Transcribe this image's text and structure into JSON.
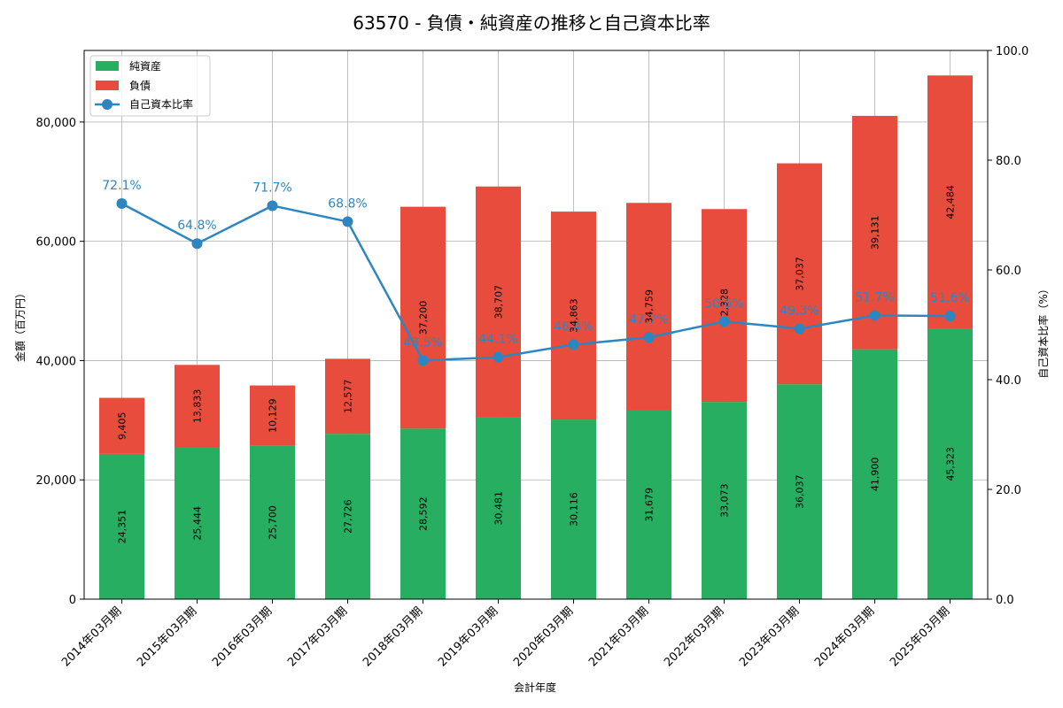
{
  "chart_data": {
    "type": "bar",
    "title": "63570 - 負債・純資産の推移と自己資本比率",
    "xlabel": "会計年度",
    "ylabel": "金額（百万円）",
    "y2label": "自己資本比率（%）",
    "ylim": [
      0,
      92000
    ],
    "y2lim": [
      0,
      100
    ],
    "yticks": [
      0,
      20000,
      40000,
      60000,
      80000
    ],
    "yticklabels": [
      "0",
      "20,000",
      "40,000",
      "60,000",
      "80,000"
    ],
    "y2ticks": [
      0,
      20,
      40,
      60,
      80,
      100
    ],
    "y2ticklabels": [
      "0.0",
      "20.0",
      "40.0",
      "60.0",
      "80.0",
      "100.0"
    ],
    "grid": true,
    "legend_position": "top-left",
    "categories": [
      "2014年03月期",
      "2015年03月期",
      "2016年03月期",
      "2017年03月期",
      "2018年03月期",
      "2019年03月期",
      "2020年03月期",
      "2021年03月期",
      "2022年03月期",
      "2023年03月期",
      "2024年03月期",
      "2025年03月期"
    ],
    "series": [
      {
        "name": "純資産",
        "type": "bar",
        "color": "#27ae60",
        "values": [
          24351,
          25444,
          25700,
          27726,
          28592,
          30481,
          30116,
          31679,
          33073,
          36037,
          41900,
          45323
        ],
        "labels": [
          "24,351",
          "25,444",
          "25,700",
          "27,726",
          "28,592",
          "30,481",
          "30,116",
          "31,679",
          "33,073",
          "36,037",
          "41,900",
          "45,323"
        ]
      },
      {
        "name": "負債",
        "type": "bar",
        "color": "#e74c3c",
        "values": [
          9405,
          13833,
          10129,
          12577,
          37200,
          38707,
          34863,
          34759,
          32328,
          37037,
          39131,
          42484
        ],
        "labels": [
          "9,405",
          "13,833",
          "10,129",
          "12,577",
          "37,200",
          "38,707",
          "34,863",
          "34,759",
          "32,328",
          "37,037",
          "39,131",
          "42,484"
        ]
      },
      {
        "name": "自己資本比率",
        "type": "line",
        "color": "#2e86c1",
        "axis": "right",
        "values": [
          72.1,
          64.8,
          71.7,
          68.8,
          43.5,
          44.1,
          46.4,
          47.7,
          50.6,
          49.3,
          51.7,
          51.6
        ],
        "labels": [
          "72.1%",
          "64.8%",
          "71.7%",
          "68.8%",
          "43.5%",
          "44.1%",
          "46.4%",
          "47.7%",
          "50.6%",
          "49.3%",
          "51.7%",
          "51.6%"
        ]
      }
    ]
  }
}
